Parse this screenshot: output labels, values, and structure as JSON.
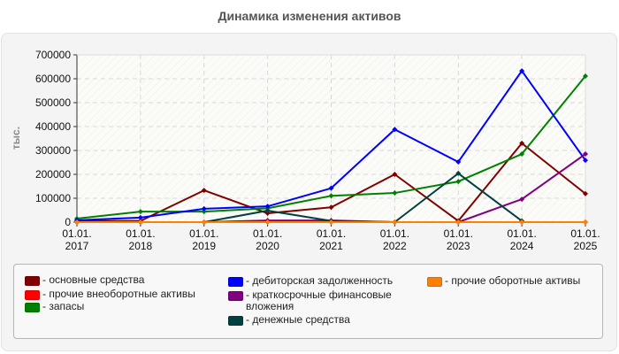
{
  "title": "Динамика изменения активов",
  "y_axis_label": "тыс.",
  "colors": {
    "osnovnye": "#800000",
    "prochie_vneob": "#ff0000",
    "zapasy": "#008000",
    "debitorka": "#0000ff",
    "kfv": "#800080",
    "dengi": "#004040",
    "prochie_ob": "#ff8000"
  },
  "legend": [
    {
      "label": "- основные средства",
      "color": "#800000"
    },
    {
      "label": "- прочие внеоборотные активы",
      "color": "#ff0000"
    },
    {
      "label": "- запасы",
      "color": "#008000"
    },
    {
      "label": "- дебиторская задолженность",
      "color": "#0000ff"
    },
    {
      "label": "- краткосрочные финансовые вложения",
      "color": "#800080"
    },
    {
      "label": "- денежные средства",
      "color": "#004040"
    },
    {
      "label": "- прочие оборотные активы",
      "color": "#ff8000"
    }
  ],
  "chart_data": {
    "type": "line",
    "title": "Динамика изменения активов",
    "xlabel": "",
    "ylabel": "тыс.",
    "ylim": [
      0,
      700000
    ],
    "yticks": [
      0,
      100000,
      200000,
      300000,
      400000,
      500000,
      600000,
      700000
    ],
    "categories": [
      "01.01.2017",
      "01.01.2018",
      "01.01.2019",
      "01.01.2020",
      "01.01.2021",
      "01.01.2022",
      "01.01.2023",
      "01.01.2024",
      "01.01.2025"
    ],
    "grid": true,
    "legend_position": "bottom",
    "series": [
      {
        "name": "основные средства",
        "color": "#800000",
        "values": [
          5000,
          5000,
          133000,
          37000,
          62000,
          200000,
          5000,
          330000,
          119000
        ]
      },
      {
        "name": "прочие внеоборотные активы",
        "color": "#ff0000",
        "values": [
          0,
          0,
          0,
          0,
          0,
          0,
          0,
          0,
          0
        ]
      },
      {
        "name": "запасы",
        "color": "#008000",
        "values": [
          15000,
          44000,
          44000,
          58000,
          110000,
          122000,
          170000,
          285000,
          611000
        ]
      },
      {
        "name": "дебиторская задолженность",
        "color": "#0000ff",
        "values": [
          8000,
          19000,
          56000,
          66000,
          142000,
          388000,
          252000,
          633000,
          259000
        ]
      },
      {
        "name": "краткосрочные финансовые вложения",
        "color": "#800080",
        "values": [
          0,
          0,
          0,
          7000,
          7000,
          0,
          0,
          96000,
          285000
        ]
      },
      {
        "name": "денежные средства",
        "color": "#004040",
        "values": [
          0,
          0,
          0,
          48000,
          5000,
          0,
          204000,
          5000,
          null
        ]
      },
      {
        "name": "прочие оборотные активы",
        "color": "#ff8000",
        "values": [
          0,
          0,
          0,
          0,
          0,
          0,
          0,
          0,
          0
        ]
      }
    ]
  }
}
